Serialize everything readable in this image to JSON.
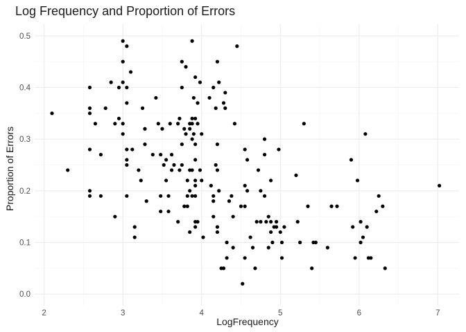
{
  "chart_data": {
    "type": "scatter",
    "title": "Log Frequency and Proportion of Errors",
    "xlabel": "LogFrequency",
    "ylabel": "Proportion of Errors",
    "xlim": [
      1.88,
      7.27
    ],
    "ylim": [
      -0.0225,
      0.5225
    ],
    "xticks": [
      2,
      3,
      4,
      5,
      6,
      7
    ],
    "yticks": [
      0.0,
      0.1,
      0.2,
      0.3,
      0.4,
      0.5
    ],
    "xtick_labels": [
      "2",
      "3",
      "4",
      "5",
      "6",
      "7"
    ],
    "ytick_labels": [
      "0.0",
      "0.1",
      "0.2",
      "0.3",
      "0.4",
      "0.5"
    ],
    "grid": true,
    "legend": false,
    "point_color": "#000000",
    "points": [
      [
        2.1,
        0.35
      ],
      [
        2.3,
        0.24
      ],
      [
        2.58,
        0.4
      ],
      [
        2.58,
        0.36
      ],
      [
        2.58,
        0.35
      ],
      [
        2.58,
        0.28
      ],
      [
        2.58,
        0.2
      ],
      [
        2.58,
        0.19
      ],
      [
        2.65,
        0.33
      ],
      [
        2.72,
        0.27
      ],
      [
        2.72,
        0.19
      ],
      [
        2.78,
        0.36
      ],
      [
        2.85,
        0.41
      ],
      [
        2.9,
        0.15
      ],
      [
        2.9,
        0.33
      ],
      [
        2.95,
        0.34
      ],
      [
        2.95,
        0.4
      ],
      [
        3.0,
        0.49
      ],
      [
        3.0,
        0.45
      ],
      [
        3.0,
        0.41
      ],
      [
        3.0,
        0.33
      ],
      [
        3.0,
        0.31
      ],
      [
        3.05,
        0.48
      ],
      [
        3.05,
        0.4
      ],
      [
        3.05,
        0.37
      ],
      [
        3.05,
        0.28
      ],
      [
        3.05,
        0.26
      ],
      [
        3.05,
        0.25
      ],
      [
        3.05,
        0.19
      ],
      [
        3.1,
        0.43
      ],
      [
        3.12,
        0.28
      ],
      [
        3.15,
        0.13
      ],
      [
        3.15,
        0.11
      ],
      [
        3.2,
        0.24
      ],
      [
        3.23,
        0.22
      ],
      [
        3.25,
        0.36
      ],
      [
        3.28,
        0.32
      ],
      [
        3.28,
        0.29
      ],
      [
        3.3,
        0.18
      ],
      [
        3.38,
        0.27
      ],
      [
        3.42,
        0.38
      ],
      [
        3.45,
        0.33
      ],
      [
        3.48,
        0.16
      ],
      [
        3.48,
        0.19
      ],
      [
        3.48,
        0.27
      ],
      [
        3.5,
        0.32
      ],
      [
        3.52,
        0.25
      ],
      [
        3.55,
        0.26
      ],
      [
        3.55,
        0.22
      ],
      [
        3.58,
        0.19
      ],
      [
        3.58,
        0.16
      ],
      [
        3.6,
        0.33
      ],
      [
        3.62,
        0.27
      ],
      [
        3.62,
        0.24
      ],
      [
        3.65,
        0.25
      ],
      [
        3.7,
        0.33
      ],
      [
        3.7,
        0.14
      ],
      [
        3.72,
        0.34
      ],
      [
        3.72,
        0.24
      ],
      [
        3.75,
        0.45
      ],
      [
        3.75,
        0.4
      ],
      [
        3.75,
        0.29
      ],
      [
        3.75,
        0.25
      ],
      [
        3.78,
        0.32
      ],
      [
        3.78,
        0.17
      ],
      [
        3.8,
        0.44
      ],
      [
        3.8,
        0.31
      ],
      [
        3.82,
        0.22
      ],
      [
        3.82,
        0.19
      ],
      [
        3.82,
        0.17
      ],
      [
        3.85,
        0.33
      ],
      [
        3.85,
        0.32
      ],
      [
        3.85,
        0.24
      ],
      [
        3.85,
        0.2
      ],
      [
        3.85,
        0.12
      ],
      [
        3.88,
        0.49
      ],
      [
        3.88,
        0.34
      ],
      [
        3.88,
        0.33
      ],
      [
        3.88,
        0.3
      ],
      [
        3.88,
        0.24
      ],
      [
        3.88,
        0.19
      ],
      [
        3.9,
        0.38
      ],
      [
        3.9,
        0.31
      ],
      [
        3.92,
        0.42
      ],
      [
        3.92,
        0.34
      ],
      [
        3.92,
        0.29
      ],
      [
        3.92,
        0.26
      ],
      [
        3.92,
        0.22
      ],
      [
        3.92,
        0.21
      ],
      [
        3.92,
        0.19
      ],
      [
        3.92,
        0.14
      ],
      [
        3.92,
        0.13
      ],
      [
        3.95,
        0.37
      ],
      [
        3.95,
        0.33
      ],
      [
        3.95,
        0.14
      ],
      [
        3.98,
        0.41
      ],
      [
        3.98,
        0.24
      ],
      [
        4.0,
        0.31
      ],
      [
        4.0,
        0.22
      ],
      [
        4.02,
        0.11
      ],
      [
        4.1,
        0.38
      ],
      [
        4.12,
        0.21
      ],
      [
        4.15,
        0.4
      ],
      [
        4.15,
        0.18
      ],
      [
        4.15,
        0.19
      ],
      [
        4.15,
        0.15
      ],
      [
        4.18,
        0.36
      ],
      [
        4.18,
        0.25
      ],
      [
        4.2,
        0.45
      ],
      [
        4.2,
        0.29
      ],
      [
        4.2,
        0.24
      ],
      [
        4.2,
        0.13
      ],
      [
        4.2,
        0.12
      ],
      [
        4.22,
        0.41
      ],
      [
        4.22,
        0.2
      ],
      [
        4.25,
        0.05
      ],
      [
        4.28,
        0.37
      ],
      [
        4.28,
        0.05
      ],
      [
        4.3,
        0.39
      ],
      [
        4.3,
        0.36
      ],
      [
        4.32,
        0.1
      ],
      [
        4.32,
        0.07
      ],
      [
        4.35,
        0.18
      ],
      [
        4.38,
        0.19
      ],
      [
        4.4,
        0.15
      ],
      [
        4.4,
        0.09
      ],
      [
        4.42,
        0.33
      ],
      [
        4.45,
        0.48
      ],
      [
        4.5,
        0.17
      ],
      [
        4.52,
        0.02
      ],
      [
        4.55,
        0.28
      ],
      [
        4.55,
        0.21
      ],
      [
        4.55,
        0.17
      ],
      [
        4.55,
        0.07
      ],
      [
        4.58,
        0.26
      ],
      [
        4.58,
        0.2
      ],
      [
        4.62,
        0.11
      ],
      [
        4.65,
        0.09
      ],
      [
        4.68,
        0.05
      ],
      [
        4.7,
        0.14
      ],
      [
        4.72,
        0.24
      ],
      [
        4.75,
        0.2
      ],
      [
        4.75,
        0.14
      ],
      [
        4.8,
        0.3
      ],
      [
        4.8,
        0.27
      ],
      [
        4.8,
        0.19
      ],
      [
        4.82,
        0.14
      ],
      [
        4.85,
        0.15
      ],
      [
        4.85,
        0.09
      ],
      [
        4.88,
        0.22
      ],
      [
        4.88,
        0.12
      ],
      [
        4.88,
        0.14
      ],
      [
        4.9,
        0.1
      ],
      [
        4.92,
        0.13
      ],
      [
        4.95,
        0.13
      ],
      [
        4.95,
        0.14
      ],
      [
        4.98,
        0.28
      ],
      [
        5.0,
        0.12
      ],
      [
        5.02,
        0.1
      ],
      [
        5.02,
        0.07
      ],
      [
        5.05,
        0.13
      ],
      [
        5.2,
        0.23
      ],
      [
        5.22,
        0.14
      ],
      [
        5.25,
        0.1
      ],
      [
        5.3,
        0.33
      ],
      [
        5.35,
        0.17
      ],
      [
        5.4,
        0.05
      ],
      [
        5.42,
        0.1
      ],
      [
        5.45,
        0.1
      ],
      [
        5.6,
        0.09
      ],
      [
        5.65,
        0.17
      ],
      [
        5.72,
        0.17
      ],
      [
        5.9,
        0.26
      ],
      [
        5.92,
        0.13
      ],
      [
        5.95,
        0.07
      ],
      [
        5.98,
        0.22
      ],
      [
        6.02,
        0.14
      ],
      [
        6.02,
        0.1
      ],
      [
        6.05,
        0.11
      ],
      [
        6.08,
        0.31
      ],
      [
        6.1,
        0.13
      ],
      [
        6.12,
        0.07
      ],
      [
        6.15,
        0.07
      ],
      [
        6.22,
        0.16
      ],
      [
        6.25,
        0.19
      ],
      [
        6.3,
        0.17
      ],
      [
        6.33,
        0.05
      ],
      [
        7.02,
        0.21
      ]
    ]
  }
}
